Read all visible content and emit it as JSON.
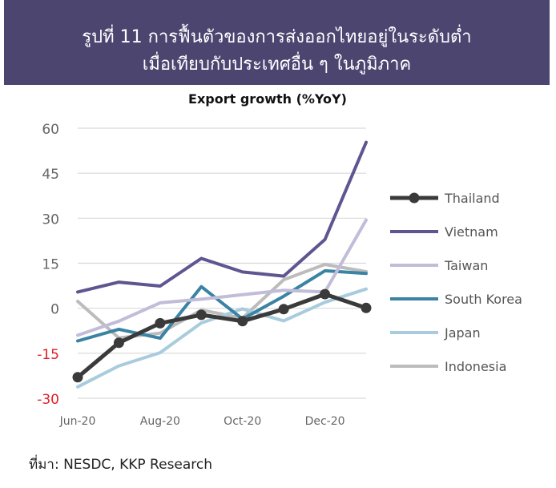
{
  "header": {
    "title_line1": "รูปที่ 11 การฟื้นตัวของการส่งออกไทยอยู่ในระดับต่ำ",
    "title_line2": "เมื่อเทียบกับประเทศอื่น ๆ ในภูมิภาค",
    "background": "#4b4570"
  },
  "footer": {
    "source": "ที่มา: NESDC, KKP Research"
  },
  "chart_data": {
    "type": "line",
    "title": "Export growth (%YoY)",
    "xlabel": "",
    "ylabel": "",
    "x": [
      "Jun-20",
      "Jul-20",
      "Aug-20",
      "Sep-20",
      "Oct-20",
      "Nov-20",
      "Dec-20",
      "Jan-21"
    ],
    "x_tick_labels": [
      "Jun-20",
      "Aug-20",
      "Oct-20",
      "Dec-20"
    ],
    "ylim": [
      -30,
      60
    ],
    "y_ticks": [
      -30,
      -15,
      0,
      15,
      30,
      45,
      60
    ],
    "negative_tick_color": "#e0202a",
    "grid": "horizontal",
    "legend_position": "right",
    "series": [
      {
        "name": "Thailand",
        "color": "#3a3a3a",
        "markers": true,
        "values": [
          -23,
          -11.5,
          -5,
          -2.2,
          -4.3,
          -0.3,
          4.7,
          0.1
        ]
      },
      {
        "name": "Vietnam",
        "color": "#5e5690",
        "markers": false,
        "values": [
          5.4,
          8.7,
          7.4,
          16.6,
          12.1,
          10.7,
          22.9,
          55.3
        ]
      },
      {
        "name": "Taiwan",
        "color": "#c1bcd8",
        "markers": false,
        "values": [
          -9,
          -4.3,
          1.8,
          3,
          4.5,
          6,
          5.4,
          29.4
        ]
      },
      {
        "name": "South Korea",
        "color": "#3a83a3",
        "markers": false,
        "values": [
          -10.9,
          -7,
          -10,
          7.2,
          -3.6,
          4,
          12.5,
          11.6
        ]
      },
      {
        "name": "Japan",
        "color": "#a8ccdd",
        "markers": false,
        "values": [
          -26.2,
          -19.2,
          -14.8,
          -4.9,
          -0.2,
          -4.2,
          2,
          6.4
        ]
      },
      {
        "name": "Indonesia",
        "color": "#bcbcbc",
        "markers": false,
        "values": [
          2.3,
          -9.9,
          -8.3,
          -0.6,
          -3.3,
          9.5,
          14.6,
          12.2
        ]
      }
    ]
  }
}
